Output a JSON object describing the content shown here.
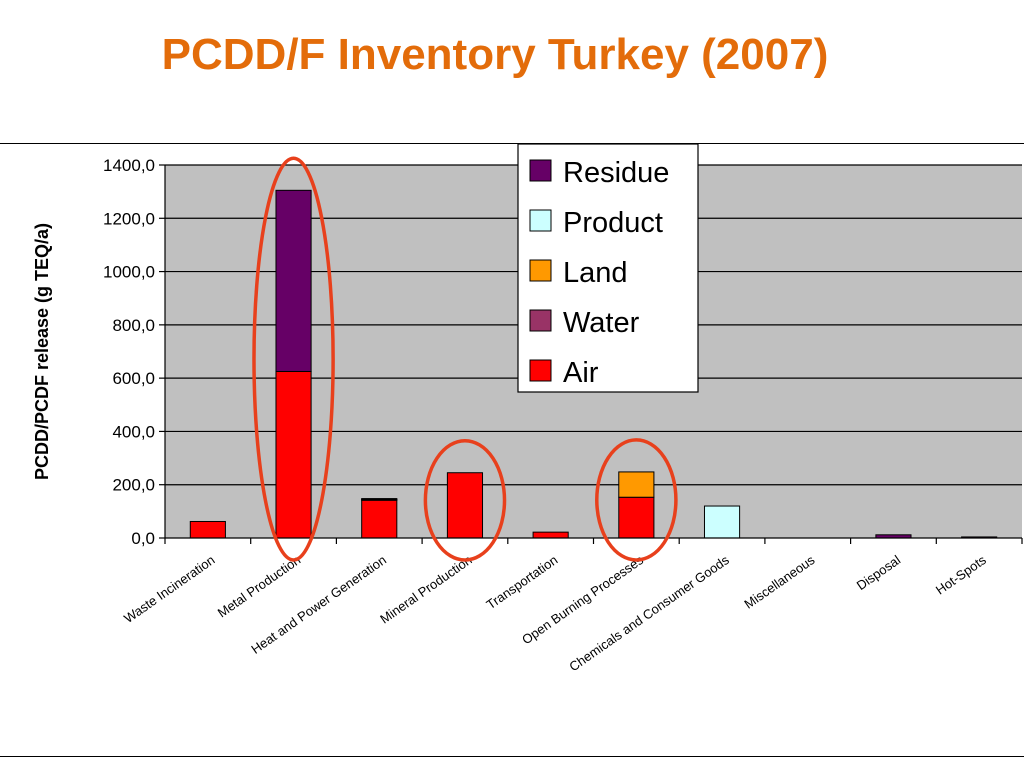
{
  "slide": {
    "title": "PCDD/F Inventory Turkey (2007)"
  },
  "chart_data": {
    "type": "bar",
    "stacked": true,
    "title": "",
    "xlabel": "",
    "ylabel": "PCDD/PCDF release (g TEQ/a)",
    "ylim": [
      0,
      1400
    ],
    "yticks": [
      0,
      200,
      400,
      600,
      800,
      1000,
      1200,
      1400
    ],
    "ytick_labels": [
      "0,0",
      "200,0",
      "400,0",
      "600,0",
      "800,0",
      "1000,0",
      "1200,0",
      "1400,0"
    ],
    "grid": true,
    "plot_background": "#c0c0c0",
    "legend_position": "top-right",
    "categories": [
      "Waste Incineration",
      "Metal Production",
      "Heat and Power Generation",
      "Mineral Production",
      "Transportation",
      "Open Burning Processes",
      "Chemicals and Consumer Goods",
      "Miscellaneous",
      "Disposal",
      "Hot-Spots"
    ],
    "series": [
      {
        "name": "Air",
        "color": "#ff0000",
        "values": [
          62,
          625,
          143,
          245,
          22,
          153,
          0,
          0,
          0,
          0
        ]
      },
      {
        "name": "Water",
        "color": "#993366",
        "values": [
          0,
          0,
          2,
          0,
          0,
          0,
          0,
          0,
          0,
          0
        ]
      },
      {
        "name": "Land",
        "color": "#ff9900",
        "values": [
          0,
          0,
          0,
          0,
          0,
          95,
          0,
          0,
          0,
          0
        ]
      },
      {
        "name": "Product",
        "color": "#ccffff",
        "values": [
          0,
          0,
          0,
          0,
          0,
          0,
          120,
          0,
          0,
          0
        ]
      },
      {
        "name": "Residue",
        "color": "#660066",
        "values": [
          0,
          680,
          3,
          0,
          0,
          0,
          0,
          0,
          12,
          4
        ]
      }
    ],
    "legend_order": [
      "Residue",
      "Product",
      "Land",
      "Water",
      "Air"
    ],
    "highlights": {
      "color": "#e8401c",
      "categories": [
        "Metal Production",
        "Mineral Production",
        "Open Burning Processes"
      ]
    }
  }
}
